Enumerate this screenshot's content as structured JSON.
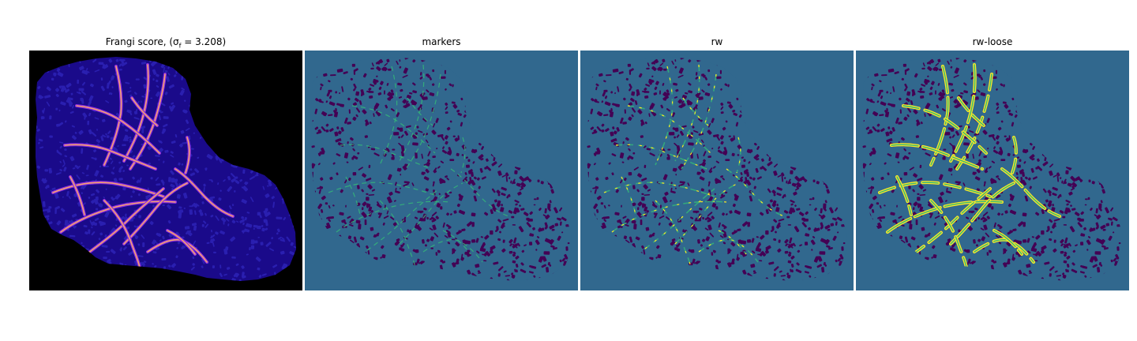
{
  "panels": [
    {
      "title": "Frangi score, ",
      "title_math": "(σ",
      "title_sub": "f",
      "title_rest": " = 3.208)",
      "background_color": "#000000",
      "tissue_color": "#1a0a8a",
      "vessel_color_low": "#8a2be2",
      "vessel_color_high": "#ffb060"
    },
    {
      "title": "markers",
      "background_color": "#31688e",
      "tissue_color": "#440154",
      "vessel_color": "#35b779"
    },
    {
      "title": "rw",
      "background_color": "#31688e",
      "tissue_color": "#440154",
      "vessel_color": "#35b779",
      "highlight_color": "#fde725"
    },
    {
      "title": "rw-loose",
      "background_color": "#31688e",
      "tissue_color": "#440154",
      "vessel_color": "#35b779",
      "highlight_color": "#fde725"
    }
  ]
}
